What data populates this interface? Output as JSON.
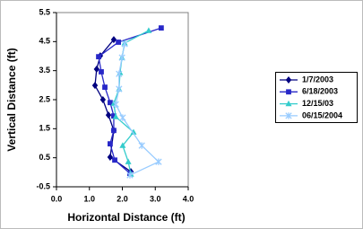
{
  "chart_data": {
    "type": "line",
    "x_label": "Horizontal Distance (ft)",
    "y_label": "Vertical Distance (ft)",
    "xlim": [
      0,
      4
    ],
    "xticks": [
      {
        "value": 0,
        "label": "0.0"
      },
      {
        "value": 1,
        "label": "1.0"
      },
      {
        "value": 2,
        "label": "2.0"
      },
      {
        "value": 3,
        "label": "3.0"
      },
      {
        "value": 4,
        "label": "4.0"
      }
    ],
    "ylim": [
      -0.5,
      5.5
    ],
    "yticks": [
      -0.5,
      0.5,
      1.5,
      2.5,
      3.5,
      4.5,
      5.5
    ],
    "grid": false,
    "legend": "right",
    "series": [
      {
        "name": "1/7/2003",
        "color": "#000080",
        "marker": "diamond",
        "x": [
          1.74,
          1.33,
          1.22,
          1.17,
          1.41,
          1.58,
          1.74,
          1.63,
          2.26
        ],
        "values": [
          4.57,
          4.01,
          3.55,
          2.99,
          2.5,
          1.97,
          1.44,
          0.52,
          0.02
        ]
      },
      {
        "name": "6/18/2003",
        "color": "#2828c8",
        "marker": "square",
        "x": [
          3.18,
          1.88,
          1.28,
          1.36,
          1.47,
          1.63,
          1.74,
          1.74,
          1.63,
          1.77,
          2.23
        ],
        "values": [
          4.97,
          4.48,
          3.98,
          3.46,
          2.93,
          2.4,
          1.94,
          1.44,
          0.98,
          0.42,
          -0.04
        ]
      },
      {
        "name": "12/15/03",
        "color": "#33cccc",
        "marker": "triangle",
        "x": [
          2.8,
          2.07,
          1.99,
          1.93,
          1.9,
          1.74,
          1.8,
          2.34,
          2.01,
          2.18,
          2.26
        ],
        "values": [
          4.88,
          4.45,
          3.95,
          3.43,
          2.87,
          2.37,
          1.91,
          1.38,
          0.92,
          0.36,
          -0.07
        ]
      },
      {
        "name": "06/15/2004",
        "color": "#99ccff",
        "marker": "star",
        "x": [
          2.07,
          1.99,
          1.9,
          1.9,
          1.8,
          2.01,
          2.59,
          3.1,
          2.23
        ],
        "values": [
          4.42,
          3.95,
          3.39,
          2.87,
          2.34,
          1.88,
          0.92,
          0.36,
          -0.1
        ]
      }
    ]
  }
}
